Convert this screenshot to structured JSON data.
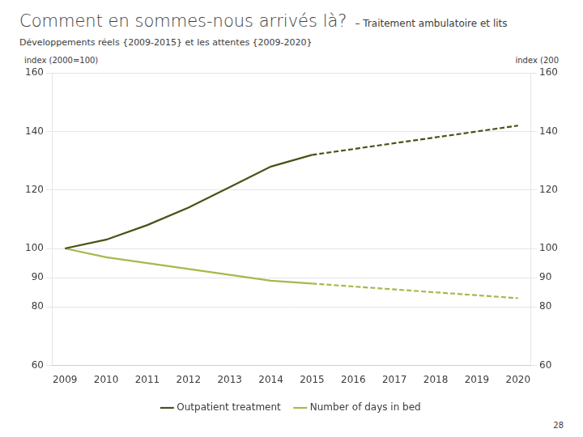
{
  "chart_data": {
    "type": "line",
    "title": "Comment en sommes-nous arrivés là?",
    "subtitle": "Développements réels {2009-2015} et les attentes {2009-2020}",
    "ylabel": "index (2000=100)",
    "y2label": "index (200",
    "annotations": [
      "– Traitement ambulatoire et lits",
      "28"
    ],
    "series": [
      {
        "name": "Outpatient treatment",
        "color": "#4a5216",
        "line_style": "solid",
        "x": [
          2009,
          2010,
          2011,
          2012,
          2013,
          2014,
          2015
        ],
        "values": [
          100,
          103,
          108,
          114,
          121,
          128,
          132
        ]
      },
      {
        "name": "Outpatient treatment",
        "color": "#4a5216",
        "line_style": "dashed",
        "x": [
          2015,
          2016,
          2017,
          2018,
          2019,
          2020
        ],
        "values": [
          132,
          134,
          136,
          138,
          140,
          142
        ]
      },
      {
        "name": "Number of days in bed",
        "color": "#a8b84a",
        "line_style": "solid",
        "x": [
          2009,
          2010,
          2011,
          2012,
          2013,
          2014,
          2015
        ],
        "values": [
          100,
          97,
          95,
          93,
          91,
          89,
          88
        ]
      },
      {
        "name": "Number of days in bed",
        "color": "#a8b84a",
        "line_style": "dashed",
        "x": [
          2015,
          2016,
          2017,
          2018,
          2019,
          2020
        ],
        "values": [
          88,
          87,
          86,
          85,
          84,
          83
        ]
      }
    ],
    "xlim": [
      2008.7,
      2020.3
    ],
    "xticks": [
      2009,
      2010,
      2011,
      2012,
      2013,
      2014,
      2015,
      2016,
      2017,
      2018,
      2019,
      2020
    ],
    "ylim": [
      60,
      160
    ],
    "yticks": [
      60,
      80,
      90,
      100,
      120,
      140,
      160
    ],
    "y2lim": [
      60,
      160
    ],
    "y2ticks": [
      60,
      80,
      90,
      100,
      120,
      140,
      160
    ],
    "grid": true,
    "legend": "bottom"
  }
}
